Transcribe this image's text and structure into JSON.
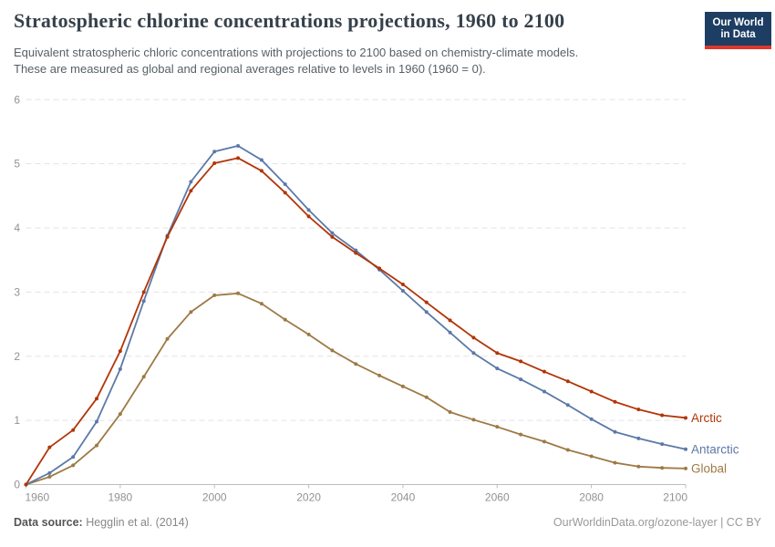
{
  "header": {
    "title": "Stratospheric chlorine concentrations projections, 1960 to 2100",
    "subtitle_line1": "Equivalent stratospheric chloric concentrations with projections to 2100 based on chemistry-climate models.",
    "subtitle_line2": "These are measured as global and regional averages relative to levels in 1960 (1960 = 0).",
    "logo": {
      "line1": "Our World",
      "line2": "in Data",
      "bg_color": "#1d3d63",
      "accent_color": "#dc382d"
    }
  },
  "footer": {
    "datasource_label": "Data source:",
    "datasource_value": " Hegglin et al. (2014)",
    "credit": "OurWorldinData.org/ozone-layer | CC BY"
  },
  "chart_data": {
    "type": "line",
    "title": "Stratospheric chlorine concentrations projections, 1960 to 2100",
    "xlabel": "",
    "ylabel": "",
    "xlim": [
      1960,
      2100
    ],
    "ylim": [
      0,
      6
    ],
    "xticks": [
      1960,
      1980,
      2000,
      2020,
      2040,
      2060,
      2080,
      2100
    ],
    "yticks": [
      0,
      1,
      2,
      3,
      4,
      5,
      6
    ],
    "grid": "horizontal-dashed",
    "legend_position": "end-of-line-labels",
    "marker": "circle",
    "x": [
      1960,
      1965,
      1970,
      1975,
      1980,
      1985,
      1990,
      1995,
      2000,
      2005,
      2010,
      2015,
      2020,
      2025,
      2030,
      2035,
      2040,
      2045,
      2050,
      2055,
      2060,
      2065,
      2070,
      2075,
      2080,
      2085,
      2090,
      2095,
      2100
    ],
    "series": [
      {
        "name": "Global",
        "color": "#9d7a45",
        "values": [
          0,
          0.12,
          0.3,
          0.61,
          1.1,
          1.68,
          2.27,
          2.69,
          2.95,
          2.98,
          2.82,
          2.57,
          2.34,
          2.09,
          1.88,
          1.7,
          1.53,
          1.36,
          1.13,
          1.01,
          0.9,
          0.78,
          0.67,
          0.54,
          0.44,
          0.34,
          0.28,
          0.26,
          0.25
        ]
      },
      {
        "name": "Antarctic",
        "color": "#5b79a8",
        "values": [
          0,
          0.18,
          0.43,
          0.98,
          1.8,
          2.86,
          3.88,
          4.72,
          5.19,
          5.28,
          5.06,
          4.68,
          4.28,
          3.92,
          3.65,
          3.35,
          3.02,
          2.69,
          2.37,
          2.05,
          1.81,
          1.64,
          1.45,
          1.24,
          1.02,
          0.82,
          0.72,
          0.63,
          0.55
        ]
      },
      {
        "name": "Arctic",
        "color": "#b13507",
        "values": [
          0,
          0.58,
          0.85,
          1.34,
          2.08,
          3.0,
          3.86,
          4.58,
          5.01,
          5.09,
          4.89,
          4.55,
          4.18,
          3.86,
          3.61,
          3.37,
          3.12,
          2.84,
          2.56,
          2.29,
          2.05,
          1.92,
          1.76,
          1.61,
          1.45,
          1.29,
          1.17,
          1.08,
          1.04
        ]
      }
    ]
  }
}
